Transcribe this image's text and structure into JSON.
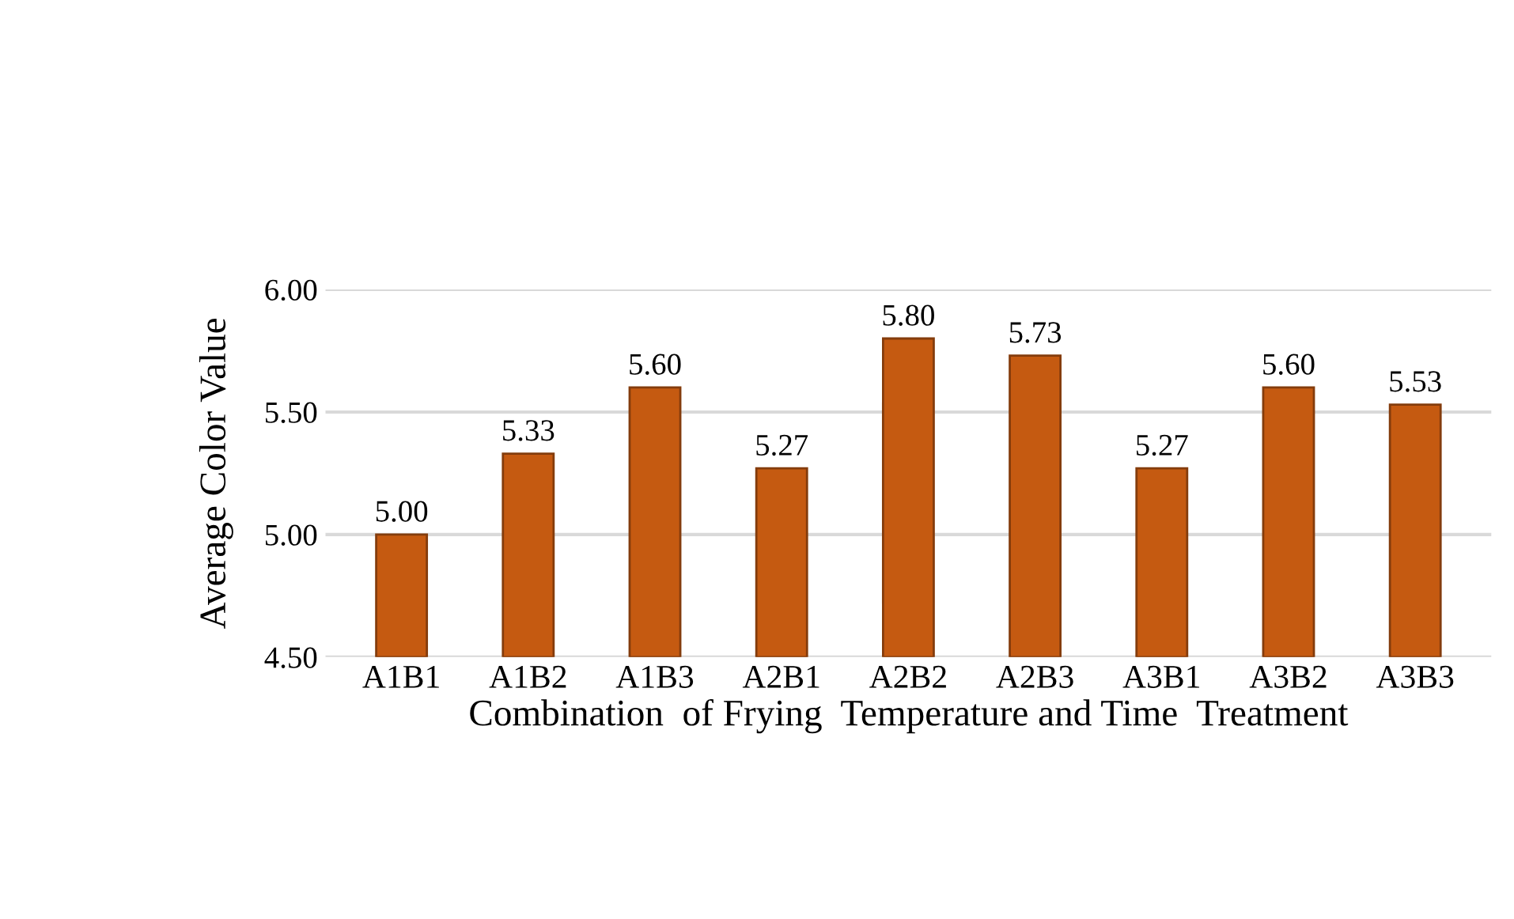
{
  "chart_data": {
    "type": "bar",
    "xlabel": "Combination  of Frying  Temperature and Time  Treatment",
    "ylabel": "Average Color Value",
    "categories": [
      "A1B1",
      "A1B2",
      "A1B3",
      "A2B1",
      "A2B2",
      "A2B3",
      "A3B1",
      "A3B2",
      "A3B3"
    ],
    "values": [
      5.0,
      5.33,
      5.6,
      5.27,
      5.8,
      5.73,
      5.27,
      5.6,
      5.53
    ],
    "value_labels": [
      "5.00",
      "5.33",
      "5.60",
      "5.27",
      "5.80",
      "5.73",
      "5.27",
      "5.60",
      "5.53"
    ],
    "color": "#c55a11",
    "ylim": [
      4.5,
      6.0
    ],
    "yticks": [
      {
        "value": 4.5,
        "label": "4.50"
      },
      {
        "value": 5.0,
        "label": "5.00"
      },
      {
        "value": 5.5,
        "label": "5.50"
      },
      {
        "value": 6.0,
        "label": "6.00"
      }
    ],
    "grid": "y",
    "legend": false
  }
}
